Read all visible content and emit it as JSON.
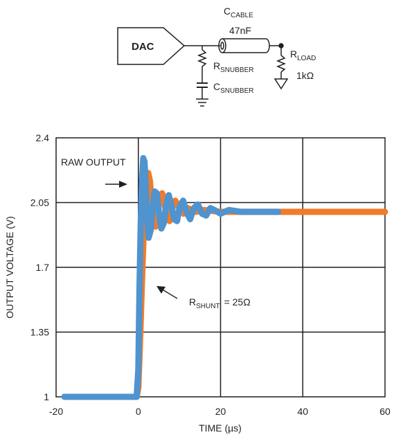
{
  "schematic": {
    "dac_label": "DAC",
    "cable_label": "C",
    "cable_sub": "CABLE",
    "cable_value": "47nF",
    "rsnub_label": "R",
    "rsnub_sub": "SNUBBER",
    "csnub_label": "C",
    "csnub_sub": "SNUBBER",
    "rload_label": "R",
    "rload_sub": "LOAD",
    "rload_value": "1kΩ"
  },
  "annotations": {
    "raw_output": "RAW OUTPUT",
    "rshunt_label": "R",
    "rshunt_sub": "SHUNT",
    "rshunt_value": "= 25Ω"
  },
  "chart_data": {
    "type": "line",
    "xlabel": "TIME (µs)",
    "ylabel": "OUTPUT VOLTAGE (V)",
    "xlim": [
      -20,
      60
    ],
    "ylim": [
      1,
      2.4
    ],
    "xticks": [
      -20,
      0,
      20,
      40,
      60
    ],
    "xtick_labels": [
      "-20",
      "0",
      "20",
      "40",
      "60"
    ],
    "yticks": [
      1,
      1.35,
      1.7,
      2.05,
      2.4
    ],
    "ytick_labels": [
      "1",
      "1.35",
      "1.7",
      "2.05",
      "2.4"
    ],
    "grid": true,
    "series": [
      {
        "color": "#f07b2a",
        "x": [
          -6,
          -1,
          -0.4,
          0,
          0.5,
          1.0,
          1.5,
          2.0,
          2.4,
          2.8,
          3.2,
          3.7,
          4.2,
          4.7,
          5.2,
          5.8,
          6.4,
          7.0,
          7.6,
          8.3,
          9.0,
          10.0,
          11.0,
          12.0,
          14.0,
          16.0,
          20.0,
          30.0,
          60.0
        ],
        "y": [
          1.0,
          1.0,
          1.0,
          1.05,
          1.35,
          1.7,
          2.0,
          2.17,
          2.21,
          2.17,
          2.06,
          1.95,
          1.92,
          1.99,
          2.08,
          2.1,
          2.04,
          1.97,
          1.95,
          2.02,
          2.06,
          2.02,
          1.99,
          2.02,
          2.0,
          2.01,
          2.0,
          2.0,
          2.0
        ]
      },
      {
        "color": "#4f93cf",
        "x": [
          -18,
          -1,
          -0.4,
          0,
          0.3,
          0.6,
          0.9,
          1.2,
          1.5,
          1.8,
          2.1,
          2.5,
          3.0,
          3.5,
          4.0,
          4.5,
          5.0,
          5.6,
          6.2,
          6.8,
          7.4,
          8.0,
          8.7,
          9.4,
          10.1,
          10.9,
          11.7,
          12.6,
          13.5,
          14.5,
          15.5,
          16.5,
          17.5,
          18.5,
          20.0,
          22.0,
          25.0,
          34.0
        ],
        "y": [
          1.0,
          1.0,
          1.0,
          1.15,
          1.6,
          1.95,
          2.18,
          2.29,
          2.27,
          2.14,
          1.97,
          1.86,
          1.9,
          2.03,
          2.11,
          2.1,
          2.0,
          1.91,
          1.94,
          2.04,
          2.09,
          2.04,
          1.96,
          1.95,
          2.03,
          2.06,
          2.0,
          1.96,
          2.02,
          2.04,
          1.99,
          1.98,
          2.02,
          2.01,
          1.99,
          2.01,
          2.0,
          2.0
        ]
      }
    ]
  }
}
